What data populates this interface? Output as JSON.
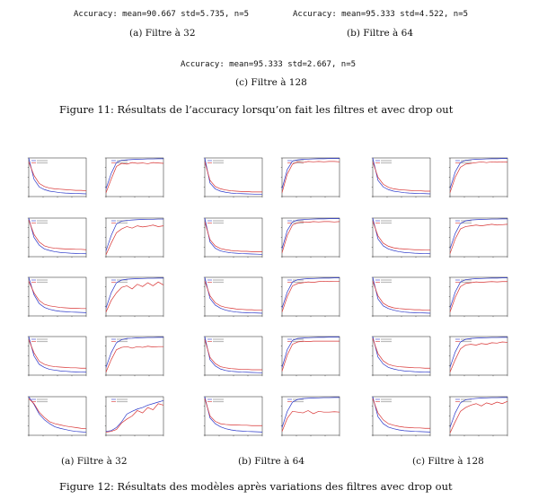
{
  "figure11": {
    "accuracy": {
      "a": "Accuracy: mean=90.667 std=5.735, n=5",
      "b": "Accuracy: mean=95.333 std=4.522, n=5",
      "c": "Accuracy: mean=95.333 std=2.667, n=5"
    },
    "subcaptions": {
      "a": "(a) Filtre à 32",
      "b": "(b) Filtre à 64",
      "c": "(c) Filtre à 128"
    },
    "caption": "Figure 11: Résultats de l’accuracy lorsqu’on fait les filtres et avec drop out"
  },
  "figure12": {
    "subcaptions": {
      "a": "(a) Filtre à 32",
      "b": "(b) Filtre à 64",
      "c": "(c) Filtre à 128"
    },
    "caption": "Figure 12: Résultats des modèles après variations des filtres avec drop out",
    "colors": {
      "train": "#2a37c9",
      "val": "#d83333"
    },
    "plots": {
      "col_a": [
        {
          "loss_train": [
            1.0,
            0.45,
            0.25,
            0.18,
            0.14,
            0.12,
            0.1,
            0.09,
            0.085,
            0.08,
            0.075,
            0.07
          ],
          "loss_val": [
            0.9,
            0.55,
            0.34,
            0.26,
            0.22,
            0.2,
            0.19,
            0.18,
            0.17,
            0.16,
            0.16,
            0.15
          ],
          "acc_train": [
            0.2,
            0.6,
            0.88,
            0.94,
            0.95,
            0.96,
            0.965,
            0.97,
            0.975,
            0.975,
            0.98,
            0.98
          ],
          "acc_val": [
            0.1,
            0.45,
            0.78,
            0.86,
            0.84,
            0.88,
            0.86,
            0.87,
            0.85,
            0.88,
            0.87,
            0.86
          ]
        },
        {
          "loss_train": [
            1.0,
            0.5,
            0.3,
            0.2,
            0.16,
            0.13,
            0.11,
            0.1,
            0.09,
            0.085,
            0.08,
            0.075
          ],
          "loss_val": [
            0.95,
            0.58,
            0.38,
            0.28,
            0.24,
            0.22,
            0.21,
            0.2,
            0.2,
            0.19,
            0.19,
            0.18
          ],
          "acc_train": [
            0.15,
            0.55,
            0.85,
            0.92,
            0.94,
            0.95,
            0.96,
            0.965,
            0.97,
            0.97,
            0.975,
            0.975
          ],
          "acc_val": [
            0.05,
            0.35,
            0.62,
            0.72,
            0.78,
            0.74,
            0.8,
            0.77,
            0.79,
            0.82,
            0.78,
            0.8
          ]
        },
        {
          "loss_train": [
            1.0,
            0.55,
            0.32,
            0.22,
            0.17,
            0.14,
            0.12,
            0.11,
            0.1,
            0.095,
            0.09,
            0.085
          ],
          "loss_val": [
            0.9,
            0.6,
            0.4,
            0.3,
            0.26,
            0.24,
            0.22,
            0.21,
            0.2,
            0.2,
            0.19,
            0.19
          ],
          "acc_train": [
            0.2,
            0.6,
            0.86,
            0.93,
            0.95,
            0.96,
            0.965,
            0.97,
            0.975,
            0.975,
            0.98,
            0.98
          ],
          "acc_val": [
            0.1,
            0.4,
            0.6,
            0.74,
            0.78,
            0.7,
            0.82,
            0.76,
            0.86,
            0.78,
            0.88,
            0.8
          ]
        },
        {
          "loss_train": [
            1.0,
            0.5,
            0.28,
            0.2,
            0.15,
            0.13,
            0.11,
            0.1,
            0.09,
            0.085,
            0.08,
            0.075
          ],
          "loss_val": [
            0.92,
            0.58,
            0.36,
            0.28,
            0.24,
            0.22,
            0.21,
            0.2,
            0.19,
            0.19,
            0.18,
            0.18
          ],
          "acc_train": [
            0.2,
            0.58,
            0.84,
            0.92,
            0.95,
            0.955,
            0.965,
            0.97,
            0.975,
            0.975,
            0.98,
            0.98
          ],
          "acc_val": [
            0.08,
            0.4,
            0.66,
            0.72,
            0.74,
            0.7,
            0.74,
            0.72,
            0.75,
            0.73,
            0.74,
            0.74
          ]
        },
        {
          "loss_train": [
            1.0,
            0.8,
            0.55,
            0.4,
            0.3,
            0.22,
            0.18,
            0.15,
            0.12,
            0.1,
            0.09,
            0.08
          ],
          "loss_val": [
            0.95,
            0.82,
            0.6,
            0.46,
            0.35,
            0.3,
            0.27,
            0.24,
            0.22,
            0.2,
            0.18,
            0.17
          ],
          "acc_train": [
            0.1,
            0.12,
            0.2,
            0.35,
            0.55,
            0.62,
            0.68,
            0.72,
            0.78,
            0.82,
            0.86,
            0.9
          ],
          "acc_val": [
            0.08,
            0.1,
            0.15,
            0.32,
            0.42,
            0.5,
            0.64,
            0.58,
            0.72,
            0.66,
            0.82,
            0.78
          ]
        }
      ],
      "col_b": [
        {
          "loss_train": [
            1.0,
            0.35,
            0.2,
            0.14,
            0.11,
            0.09,
            0.08,
            0.075,
            0.07,
            0.065,
            0.06,
            0.06
          ],
          "loss_val": [
            0.9,
            0.42,
            0.26,
            0.2,
            0.17,
            0.15,
            0.14,
            0.13,
            0.13,
            0.12,
            0.12,
            0.12
          ],
          "acc_train": [
            0.2,
            0.7,
            0.92,
            0.95,
            0.965,
            0.97,
            0.975,
            0.98,
            0.98,
            0.985,
            0.985,
            0.985
          ],
          "acc_val": [
            0.1,
            0.58,
            0.84,
            0.9,
            0.88,
            0.91,
            0.9,
            0.91,
            0.9,
            0.91,
            0.91,
            0.9
          ]
        },
        {
          "loss_train": [
            1.0,
            0.38,
            0.22,
            0.15,
            0.12,
            0.1,
            0.09,
            0.08,
            0.075,
            0.07,
            0.065,
            0.06
          ],
          "loss_val": [
            0.9,
            0.44,
            0.28,
            0.21,
            0.18,
            0.16,
            0.15,
            0.14,
            0.14,
            0.13,
            0.13,
            0.13
          ],
          "acc_train": [
            0.2,
            0.68,
            0.9,
            0.95,
            0.96,
            0.97,
            0.975,
            0.98,
            0.98,
            0.985,
            0.985,
            0.985
          ],
          "acc_val": [
            0.1,
            0.55,
            0.82,
            0.88,
            0.9,
            0.89,
            0.91,
            0.9,
            0.91,
            0.91,
            0.9,
            0.91
          ]
        },
        {
          "loss_train": [
            1.0,
            0.45,
            0.28,
            0.2,
            0.15,
            0.12,
            0.1,
            0.09,
            0.085,
            0.08,
            0.075,
            0.07
          ],
          "loss_val": [
            0.9,
            0.52,
            0.34,
            0.26,
            0.22,
            0.2,
            0.18,
            0.17,
            0.16,
            0.16,
            0.15,
            0.15
          ],
          "acc_train": [
            0.2,
            0.62,
            0.88,
            0.94,
            0.955,
            0.965,
            0.97,
            0.975,
            0.98,
            0.98,
            0.985,
            0.985
          ],
          "acc_val": [
            0.1,
            0.5,
            0.78,
            0.84,
            0.86,
            0.88,
            0.87,
            0.89,
            0.9,
            0.89,
            0.9,
            0.9
          ]
        },
        {
          "loss_train": [
            1.0,
            0.4,
            0.24,
            0.16,
            0.12,
            0.1,
            0.09,
            0.08,
            0.075,
            0.07,
            0.065,
            0.06
          ],
          "loss_val": [
            0.92,
            0.46,
            0.3,
            0.22,
            0.19,
            0.17,
            0.16,
            0.15,
            0.15,
            0.14,
            0.14,
            0.14
          ],
          "acc_train": [
            0.2,
            0.66,
            0.9,
            0.95,
            0.96,
            0.97,
            0.975,
            0.98,
            0.98,
            0.985,
            0.985,
            0.985
          ],
          "acc_val": [
            0.1,
            0.52,
            0.8,
            0.86,
            0.88,
            0.87,
            0.88,
            0.88,
            0.88,
            0.88,
            0.88,
            0.88
          ]
        },
        {
          "loss_train": [
            1.0,
            0.45,
            0.3,
            0.22,
            0.17,
            0.14,
            0.12,
            0.11,
            0.1,
            0.095,
            0.09,
            0.085
          ],
          "loss_val": [
            0.95,
            0.5,
            0.36,
            0.3,
            0.28,
            0.27,
            0.27,
            0.26,
            0.26,
            0.25,
            0.25,
            0.25
          ],
          "acc_train": [
            0.2,
            0.62,
            0.86,
            0.93,
            0.95,
            0.96,
            0.965,
            0.97,
            0.975,
            0.975,
            0.98,
            0.98
          ],
          "acc_val": [
            0.1,
            0.44,
            0.62,
            0.6,
            0.58,
            0.64,
            0.56,
            0.62,
            0.6,
            0.6,
            0.61,
            0.6
          ]
        }
      ],
      "col_c": [
        {
          "loss_train": [
            1.0,
            0.42,
            0.25,
            0.18,
            0.14,
            0.12,
            0.1,
            0.09,
            0.085,
            0.08,
            0.075,
            0.07
          ],
          "loss_val": [
            0.9,
            0.5,
            0.32,
            0.24,
            0.2,
            0.18,
            0.17,
            0.16,
            0.15,
            0.15,
            0.14,
            0.14
          ],
          "acc_train": [
            0.2,
            0.64,
            0.88,
            0.94,
            0.955,
            0.965,
            0.97,
            0.975,
            0.98,
            0.98,
            0.985,
            0.985
          ],
          "acc_val": [
            0.1,
            0.5,
            0.76,
            0.84,
            0.86,
            0.88,
            0.9,
            0.88,
            0.9,
            0.89,
            0.9,
            0.89
          ]
        },
        {
          "loss_train": [
            1.0,
            0.46,
            0.28,
            0.2,
            0.16,
            0.13,
            0.11,
            0.1,
            0.09,
            0.085,
            0.08,
            0.075
          ],
          "loss_val": [
            0.92,
            0.54,
            0.35,
            0.27,
            0.23,
            0.21,
            0.2,
            0.19,
            0.18,
            0.18,
            0.17,
            0.17
          ],
          "acc_train": [
            0.2,
            0.6,
            0.86,
            0.93,
            0.95,
            0.96,
            0.965,
            0.97,
            0.975,
            0.975,
            0.98,
            0.98
          ],
          "acc_val": [
            0.08,
            0.46,
            0.72,
            0.78,
            0.8,
            0.82,
            0.8,
            0.82,
            0.84,
            0.82,
            0.83,
            0.84
          ]
        },
        {
          "loss_train": [
            1.0,
            0.44,
            0.26,
            0.19,
            0.15,
            0.12,
            0.1,
            0.09,
            0.085,
            0.08,
            0.075,
            0.07
          ],
          "loss_val": [
            0.9,
            0.52,
            0.33,
            0.25,
            0.21,
            0.19,
            0.18,
            0.17,
            0.16,
            0.16,
            0.15,
            0.15
          ],
          "acc_train": [
            0.2,
            0.62,
            0.88,
            0.94,
            0.955,
            0.965,
            0.97,
            0.975,
            0.98,
            0.98,
            0.985,
            0.985
          ],
          "acc_val": [
            0.1,
            0.48,
            0.76,
            0.84,
            0.86,
            0.88,
            0.87,
            0.88,
            0.89,
            0.88,
            0.89,
            0.89
          ]
        },
        {
          "loss_train": [
            1.0,
            0.47,
            0.29,
            0.2,
            0.16,
            0.13,
            0.11,
            0.1,
            0.09,
            0.085,
            0.08,
            0.075
          ],
          "loss_val": [
            0.95,
            0.56,
            0.37,
            0.28,
            0.24,
            0.22,
            0.21,
            0.2,
            0.19,
            0.19,
            0.18,
            0.18
          ],
          "acc_train": [
            0.2,
            0.6,
            0.86,
            0.93,
            0.95,
            0.96,
            0.965,
            0.97,
            0.975,
            0.975,
            0.98,
            0.98
          ],
          "acc_val": [
            0.08,
            0.4,
            0.68,
            0.78,
            0.8,
            0.78,
            0.82,
            0.8,
            0.84,
            0.83,
            0.86,
            0.85
          ]
        },
        {
          "loss_train": [
            1.0,
            0.48,
            0.3,
            0.21,
            0.17,
            0.14,
            0.12,
            0.11,
            0.1,
            0.095,
            0.09,
            0.085
          ],
          "loss_val": [
            0.95,
            0.58,
            0.4,
            0.3,
            0.26,
            0.23,
            0.21,
            0.2,
            0.19,
            0.19,
            0.18,
            0.18
          ],
          "acc_train": [
            0.2,
            0.58,
            0.84,
            0.92,
            0.94,
            0.955,
            0.965,
            0.97,
            0.975,
            0.975,
            0.98,
            0.98
          ],
          "acc_val": [
            0.06,
            0.35,
            0.62,
            0.72,
            0.78,
            0.82,
            0.76,
            0.84,
            0.8,
            0.86,
            0.82,
            0.88
          ]
        }
      ]
    }
  }
}
